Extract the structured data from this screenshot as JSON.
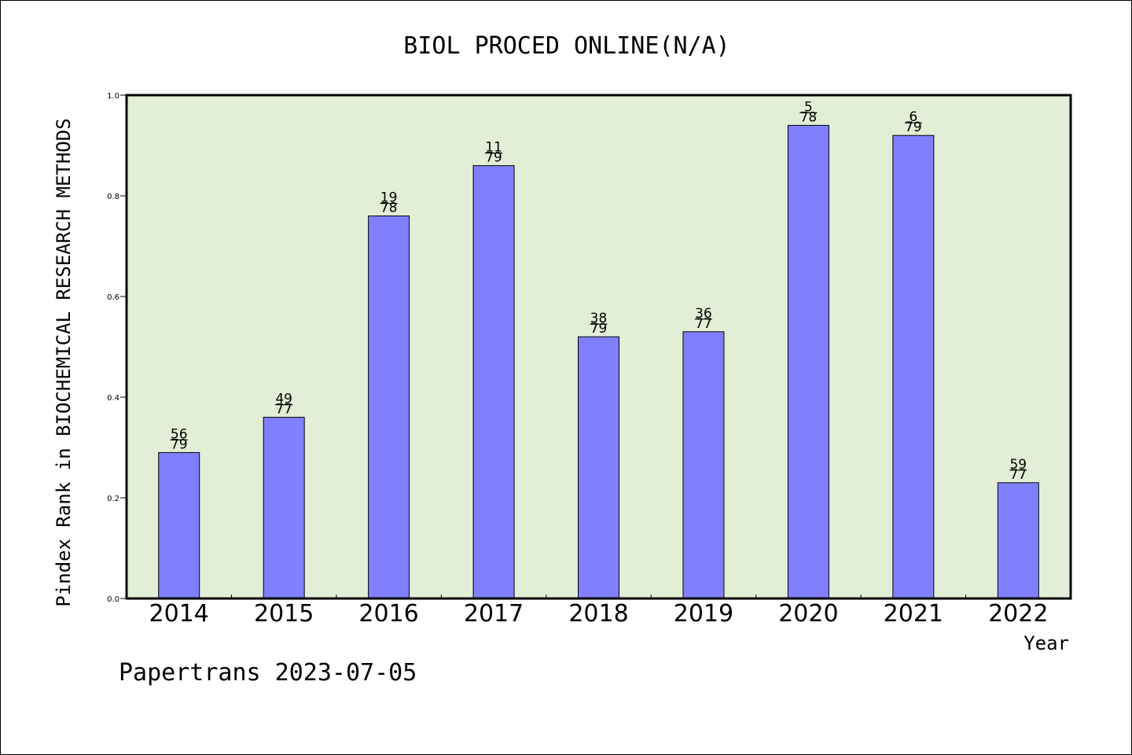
{
  "chart_data": {
    "type": "bar",
    "title": "BIOL PROCED ONLINE(N/A)",
    "ylabel": "Pindex Rank in BIOCHEMICAL RESEARCH METHODS",
    "xlabel": "Year",
    "categories": [
      "2014",
      "2015",
      "2016",
      "2017",
      "2018",
      "2019",
      "2020",
      "2021",
      "2022"
    ],
    "values": [
      0.29,
      0.36,
      0.76,
      0.86,
      0.52,
      0.53,
      0.94,
      0.92,
      0.23
    ],
    "rank_labels": [
      {
        "rank": "56",
        "total": "79"
      },
      {
        "rank": "49",
        "total": "77"
      },
      {
        "rank": "19",
        "total": "78"
      },
      {
        "rank": "11",
        "total": "79"
      },
      {
        "rank": "38",
        "total": "79"
      },
      {
        "rank": "36",
        "total": "77"
      },
      {
        "rank": "5",
        "total": "78"
      },
      {
        "rank": "6",
        "total": "79"
      },
      {
        "rank": "59",
        "total": "77"
      }
    ],
    "ylim": [
      0.0,
      1.0
    ],
    "yticks": [
      "0.0",
      "0.2",
      "0.4",
      "0.6",
      "0.8",
      "1.0"
    ],
    "grid": false,
    "colors": {
      "bar": "#8080ff",
      "plot_background": "#e2efd6",
      "axis": "#000000"
    }
  },
  "footer": "Papertrans 2023-07-05"
}
